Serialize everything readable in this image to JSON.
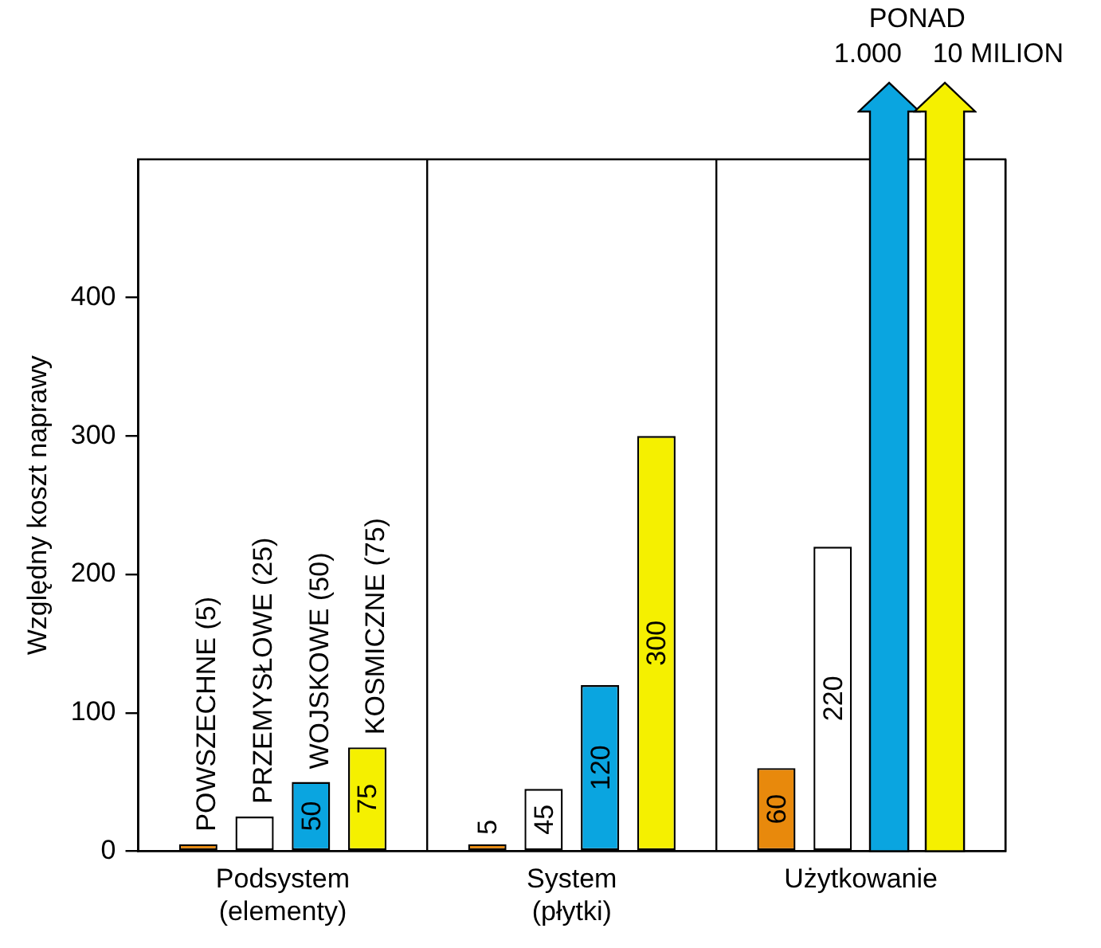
{
  "chart_data": {
    "type": "bar",
    "ylabel": "Względny koszt naprawy",
    "categories": [
      "Podsystem\n(elementy)",
      "System\n(płytki)",
      "Użytkowanie"
    ],
    "series": [
      {
        "name": "POWSZECHNE (5)",
        "color": "#e8890c",
        "values": [
          5,
          5,
          60
        ],
        "value_labels": [
          null,
          "5",
          "60"
        ]
      },
      {
        "name": "PRZEMYSŁOWE (25)",
        "color": "#ffffff",
        "values": [
          25,
          45,
          220
        ],
        "value_labels": [
          null,
          "45",
          "220"
        ]
      },
      {
        "name": "WOJSKOWE (50)",
        "color": "#0aa5e0",
        "values": [
          50,
          120,
          null
        ],
        "value_labels": [
          "50",
          "120",
          null
        ]
      },
      {
        "name": "KOSMICZNE (75)",
        "color": "#f5f000",
        "values": [
          75,
          300,
          null
        ],
        "value_labels": [
          "75",
          "300",
          null
        ]
      }
    ],
    "ylim": [
      0,
      500
    ],
    "yticks": [
      0,
      100,
      200,
      300,
      400
    ],
    "grid": "x",
    "legend": false,
    "annotations": [
      "PONAD",
      "1.000",
      "10 MILION"
    ]
  }
}
